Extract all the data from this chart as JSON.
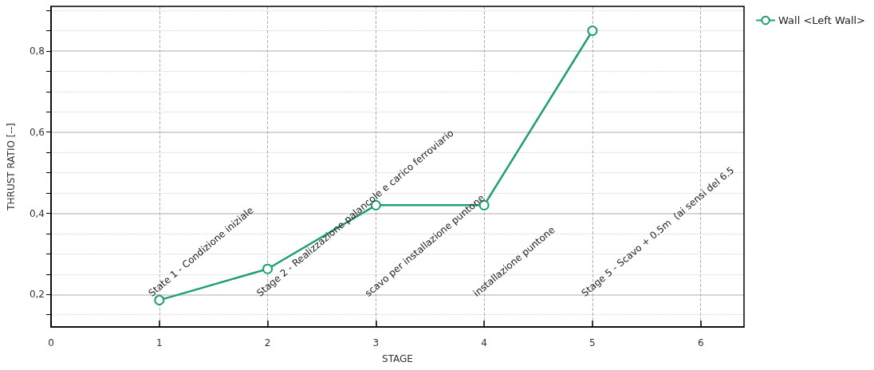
{
  "chart_data": {
    "type": "line",
    "xlabel": "STAGE",
    "ylabel": "THRUST RATIO [--]",
    "x": [
      1,
      2,
      3,
      4,
      5
    ],
    "series": [
      {
        "name": "Wall <Left Wall>",
        "color": "#1f9e78",
        "values": [
          0.186,
          0.263,
          0.42,
          0.42,
          0.85
        ]
      }
    ],
    "xlim": [
      0,
      6.4
    ],
    "xticks": [
      0,
      1,
      2,
      3,
      4,
      5,
      6
    ],
    "ylim": [
      0.12,
      0.91
    ],
    "yticks": [
      {
        "value": 0.15,
        "label": null
      },
      {
        "value": 0.2,
        "label": "0,2"
      },
      {
        "value": 0.25,
        "label": null
      },
      {
        "value": 0.3,
        "label": null
      },
      {
        "value": 0.35,
        "label": null
      },
      {
        "value": 0.4,
        "label": "0,4"
      },
      {
        "value": 0.45,
        "label": null
      },
      {
        "value": 0.5,
        "label": null
      },
      {
        "value": 0.55,
        "label": null
      },
      {
        "value": 0.6,
        "label": "0,6"
      },
      {
        "value": 0.65,
        "label": null
      },
      {
        "value": 0.7,
        "label": null
      },
      {
        "value": 0.75,
        "label": null
      },
      {
        "value": 0.8,
        "label": "0,8"
      },
      {
        "value": 0.85,
        "label": null
      },
      {
        "value": 0.9,
        "label": null
      }
    ],
    "annotations": [
      "State 1 - Condizione iniziale",
      "Stage 2 - Realizzazione palancole e carico ferroviario",
      "scavo per installazione puntone",
      "installazione puntone",
      "Stage 5 - Scavo + 0.5m  (ai sensi del 6.5"
    ],
    "grid": true,
    "legend": "top right",
    "marker": "circle",
    "line_style": "solid"
  }
}
